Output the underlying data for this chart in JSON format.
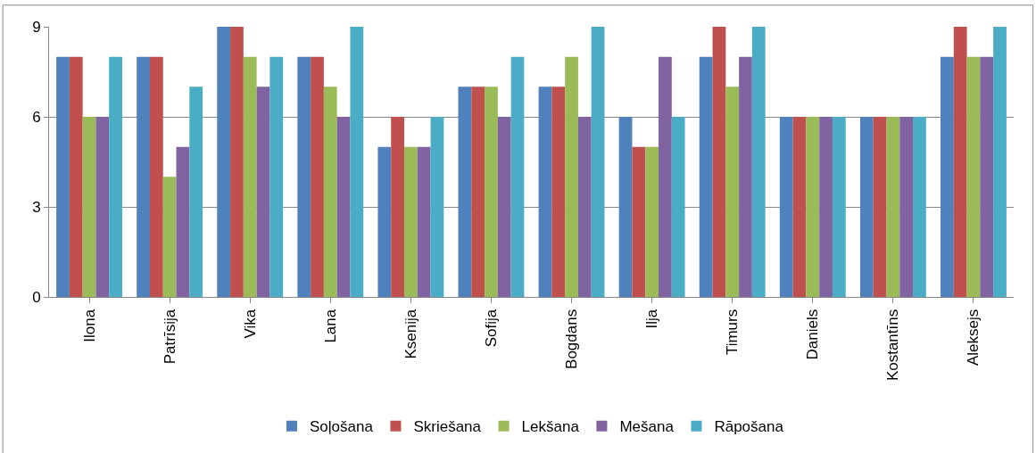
{
  "chart_data": {
    "type": "bar",
    "categories": [
      "Ilona",
      "Patrīsija",
      "Vika",
      "Lana",
      "Ksenija",
      "Sofija",
      "Bogdans",
      "Ilja",
      "Timurs",
      "Daniels",
      "Kostantīns",
      "Aleksejs"
    ],
    "series": [
      {
        "name": "Soļošana",
        "color": "#4f81bd",
        "values": [
          8,
          8,
          9,
          8,
          5,
          7,
          7,
          6,
          8,
          6,
          6,
          8
        ]
      },
      {
        "name": "Skriešana",
        "color": "#c0504d",
        "values": [
          8,
          8,
          9,
          8,
          6,
          7,
          7,
          5,
          9,
          6,
          6,
          9
        ]
      },
      {
        "name": "Lekšana",
        "color": "#9bbb59",
        "values": [
          6,
          4,
          8,
          7,
          5,
          7,
          8,
          5,
          7,
          6,
          6,
          8
        ]
      },
      {
        "name": "Mešana",
        "color": "#8064a2",
        "values": [
          6,
          5,
          7,
          6,
          5,
          6,
          6,
          8,
          8,
          6,
          6,
          8
        ]
      },
      {
        "name": "Rāpošana",
        "color": "#4bacc6",
        "values": [
          8,
          7,
          8,
          9,
          6,
          8,
          9,
          6,
          9,
          6,
          6,
          9
        ]
      }
    ],
    "ylim": [
      0,
      9
    ],
    "yticks": [
      0,
      3,
      6,
      9
    ],
    "grid": "y",
    "legend": "bottom"
  }
}
